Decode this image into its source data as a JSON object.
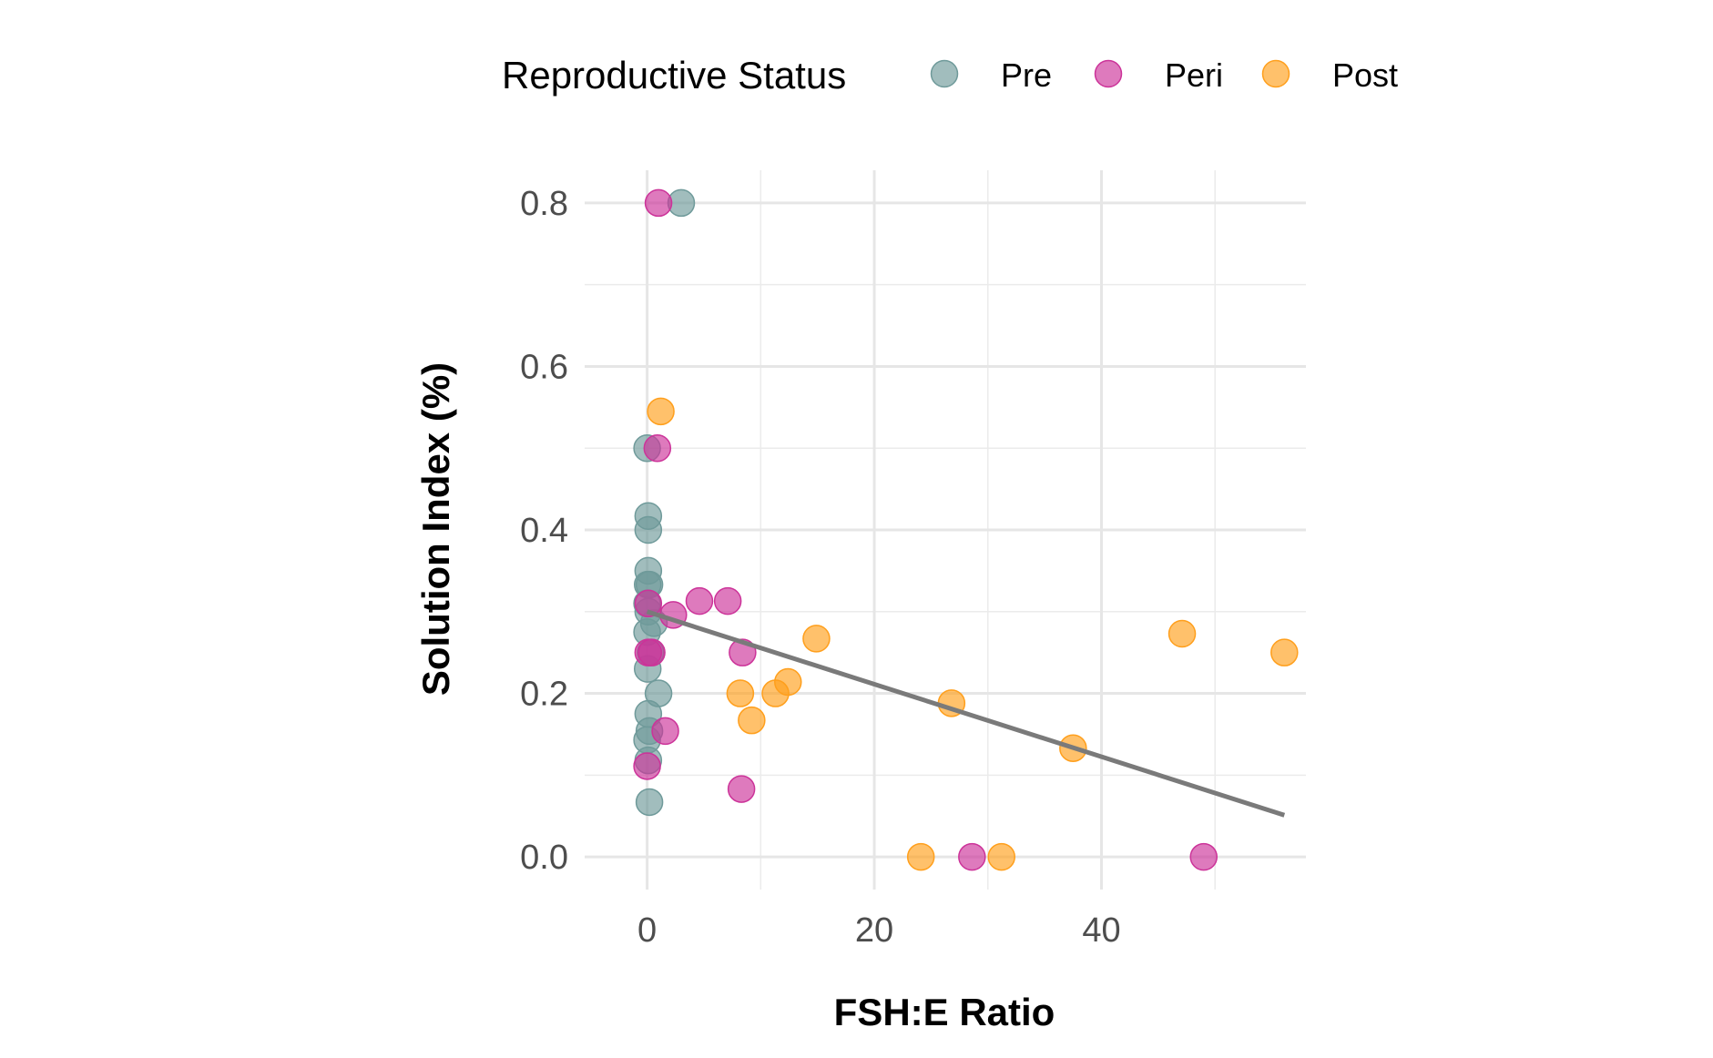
{
  "chart_data": {
    "type": "scatter",
    "title": "",
    "xlabel": "FSH:E Ratio",
    "ylabel": "Solution Index (%)",
    "xlim": [
      -5.5,
      58
    ],
    "ylim": [
      -0.04,
      0.84
    ],
    "x_ticks": [
      0,
      20,
      40
    ],
    "x_tick_labels": [
      "0",
      "20",
      "40"
    ],
    "y_ticks": [
      0.0,
      0.2,
      0.4,
      0.6,
      0.8
    ],
    "y_tick_labels": [
      "0.0",
      "0.2",
      "0.4",
      "0.6",
      "0.8"
    ],
    "grid": true,
    "legend": {
      "title": "Reproductive Status",
      "position": "top"
    },
    "series": [
      {
        "name": "Pre",
        "color": "#6f9a9a",
        "points": [
          [
            3.0,
            0.8
          ],
          [
            0.0,
            0.5
          ],
          [
            0.1,
            0.417
          ],
          [
            0.1,
            0.4
          ],
          [
            0.1,
            0.35
          ],
          [
            0.2,
            0.333
          ],
          [
            0.05,
            0.333
          ],
          [
            0.0,
            0.31
          ],
          [
            0.1,
            0.3
          ],
          [
            0.6,
            0.286
          ],
          [
            0.0,
            0.275
          ],
          [
            0.3,
            0.25
          ],
          [
            0.05,
            0.23
          ],
          [
            1.0,
            0.2
          ],
          [
            0.1,
            0.175
          ],
          [
            0.2,
            0.154
          ],
          [
            0.0,
            0.143
          ],
          [
            0.1,
            0.118
          ],
          [
            0.2,
            0.067
          ]
        ]
      },
      {
        "name": "Peri",
        "color": "#cc3399",
        "points": [
          [
            1.0,
            0.8
          ],
          [
            0.9,
            0.5
          ],
          [
            4.6,
            0.313
          ],
          [
            7.1,
            0.313
          ],
          [
            2.3,
            0.296
          ],
          [
            0.1,
            0.31
          ],
          [
            8.4,
            0.25
          ],
          [
            0.4,
            0.25
          ],
          [
            0.1,
            0.25
          ],
          [
            1.6,
            0.154
          ],
          [
            0.0,
            0.111
          ],
          [
            8.3,
            0.083
          ],
          [
            28.6,
            0.0
          ],
          [
            49.0,
            0.0
          ]
        ]
      },
      {
        "name": "Post",
        "color": "#ff9f1c",
        "points": [
          [
            1.2,
            0.545
          ],
          [
            14.9,
            0.267
          ],
          [
            8.2,
            0.2
          ],
          [
            11.3,
            0.2
          ],
          [
            12.4,
            0.214
          ],
          [
            9.2,
            0.167
          ],
          [
            26.8,
            0.188
          ],
          [
            37.5,
            0.133
          ],
          [
            47.1,
            0.273
          ],
          [
            56.1,
            0.25
          ],
          [
            24.1,
            0.0
          ],
          [
            31.2,
            0.0
          ]
        ]
      }
    ],
    "trendline": {
      "color": "#7a7a7a",
      "x": [
        0,
        56.1
      ],
      "y": [
        0.3,
        0.051
      ]
    }
  }
}
